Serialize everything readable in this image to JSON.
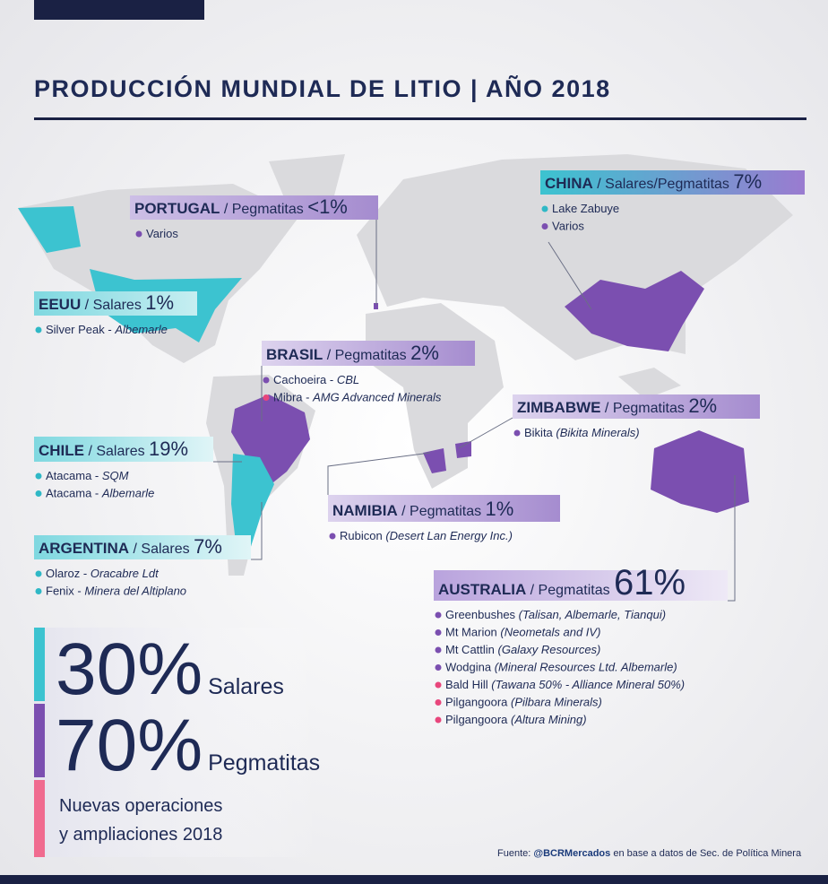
{
  "header": {
    "title": "PRODUCCIÓN MUNDIAL DE LITIO | AÑO 2018"
  },
  "regions": [
    {
      "country": "PORTUGAL",
      "type": " / Pegmatitas ",
      "share": "<1%",
      "colors": [
        "#cdbfe6",
        "#a58ccf"
      ],
      "sites": [
        {
          "name": "Varios",
          "company": "",
          "dot": "#7b4fb0"
        }
      ]
    },
    {
      "country": "CHINA",
      "type": " / Salares/Pegmatitas ",
      "share": "7%",
      "colors": [
        "#3cc3d0",
        "#9a7bd0"
      ],
      "sites": [
        {
          "name": "Lake Zabuye",
          "company": "",
          "dot": "#2fb8c6"
        },
        {
          "name": "Varios",
          "company": "",
          "dot": "#7b4fb0"
        }
      ]
    },
    {
      "country": "EEUU",
      "type": " / Salares ",
      "share": "1%",
      "colors": [
        "#7fd8e0",
        "#c6eef1"
      ],
      "sites": [
        {
          "name": "Silver Peak - ",
          "company": "Albemarle",
          "dot": "#2fb8c6"
        }
      ]
    },
    {
      "country": "BRASIL",
      "type": " / Pegmatitas ",
      "share": "2%",
      "colors": [
        "#ddd3ee",
        "#a58ccf"
      ],
      "sites": [
        {
          "name": "Cachoeira - ",
          "company": "CBL",
          "dot": "#7b4fb0"
        },
        {
          "name": "Mibra - ",
          "company": "AMG Advanced Minerals",
          "dot": "#e8467c"
        }
      ]
    },
    {
      "country": "ZIMBABWE",
      "type": " / Pegmatitas ",
      "share": "2%",
      "colors": [
        "#ddd3ee",
        "#a58ccf"
      ],
      "sites": [
        {
          "name": "Bikita ",
          "company": "(Bikita Minerals)",
          "dot": "#7b4fb0"
        }
      ]
    },
    {
      "country": "CHILE",
      "type": " / Salares ",
      "share": "19%",
      "colors": [
        "#7fd8e0",
        "#e0f5f7"
      ],
      "sites": [
        {
          "name": "Atacama - ",
          "company": "SQM",
          "dot": "#2fb8c6"
        },
        {
          "name": "Atacama - ",
          "company": "Albemarle",
          "dot": "#2fb8c6"
        }
      ]
    },
    {
      "country": "NAMIBIA",
      "type": " / Pegmatitas ",
      "share": "1%",
      "colors": [
        "#ddd3ee",
        "#a58ccf"
      ],
      "sites": [
        {
          "name": "Rubicon ",
          "company": "(Desert Lan Energy Inc.)",
          "dot": "#7b4fb0"
        }
      ]
    },
    {
      "country": "ARGENTINA",
      "type": " / Salares ",
      "share": "7%",
      "colors": [
        "#7fd8e0",
        "#e0f5f7"
      ],
      "sites": [
        {
          "name": "Olaroz - ",
          "company": "Oracabre Ldt",
          "dot": "#2fb8c6"
        },
        {
          "name": "Fenix - ",
          "company": "Minera del Altiplano",
          "dot": "#2fb8c6"
        }
      ]
    },
    {
      "country": "AUSTRALIA",
      "type": " / Pegmatitas ",
      "share": "61%",
      "colors": [
        "#b9a3dd",
        "#eee9f6"
      ],
      "sites": [
        {
          "name": "Greenbushes ",
          "company": "(Talisan, Albemarle, Tianqui)",
          "dot": "#7b4fb0"
        },
        {
          "name": "Mt Marion ",
          "company": "(Neometals and IV)",
          "dot": "#7b4fb0"
        },
        {
          "name": "Mt Cattlin ",
          "company": "(Galaxy Resources)",
          "dot": "#7b4fb0"
        },
        {
          "name": "Wodgina ",
          "company": "(Mineral Resources Ltd. Albemarle)",
          "dot": "#7b4fb0"
        },
        {
          "name": "Bald Hill ",
          "company": "(Tawana 50% - Alliance Mineral 50%)",
          "dot": "#e8467c"
        },
        {
          "name": "Pilgangoora ",
          "company": "(Pilbara Minerals)",
          "dot": "#e8467c"
        },
        {
          "name": "Pilgangoora ",
          "company": "(Altura Mining)",
          "dot": "#e8467c"
        }
      ]
    }
  ],
  "summary": [
    {
      "value": "30%",
      "label": "Salares",
      "color": "#3cc3d0"
    },
    {
      "value": "70%",
      "label": "Pegmatitas",
      "color": "#7b4fb0"
    }
  ],
  "new_ops": {
    "lines": [
      "Nuevas operaciones",
      "y ampliaciones 2018"
    ],
    "color": "#f06b8f"
  },
  "source": {
    "prefix": "Fuente: ",
    "handle": "@BCRMercados",
    "text": " en base a datos de Sec. de Política Minera"
  }
}
